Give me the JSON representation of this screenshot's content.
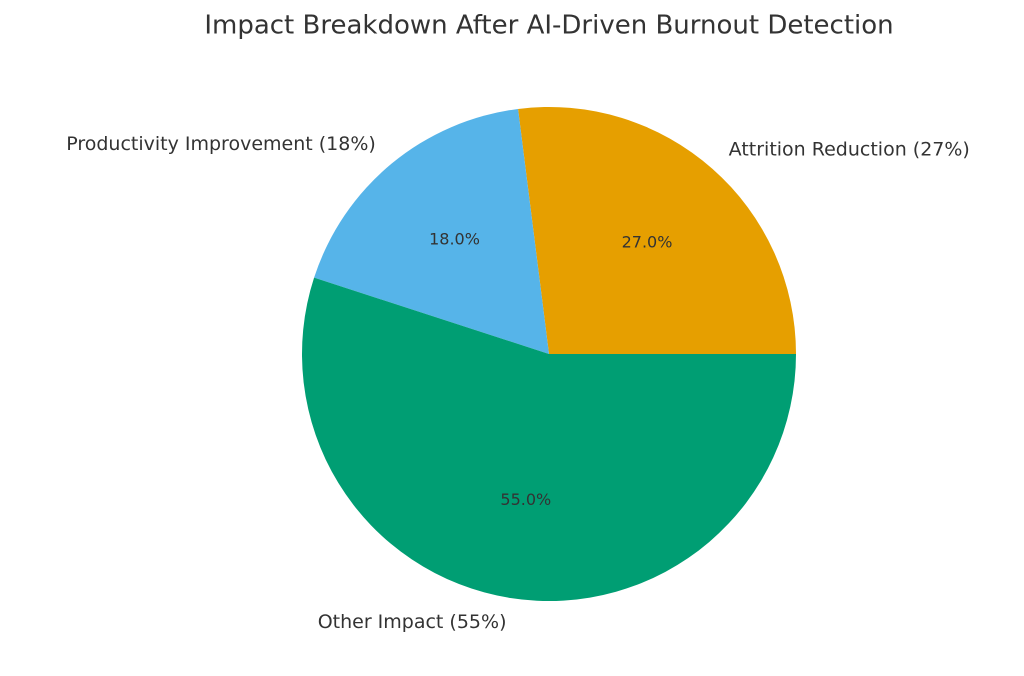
{
  "chart_data": {
    "type": "pie",
    "title": "Impact Breakdown After AI-Driven Burnout Detection",
    "categories": [
      "Attrition Reduction (27%)",
      "Productivity Improvement (18%)",
      "Other Impact (55%)"
    ],
    "values": [
      27,
      18,
      55
    ],
    "value_labels": [
      "27.0%",
      "18.0%",
      "55.0%"
    ],
    "colors": [
      "#E69F00",
      "#56B4E9",
      "#009E73"
    ]
  }
}
